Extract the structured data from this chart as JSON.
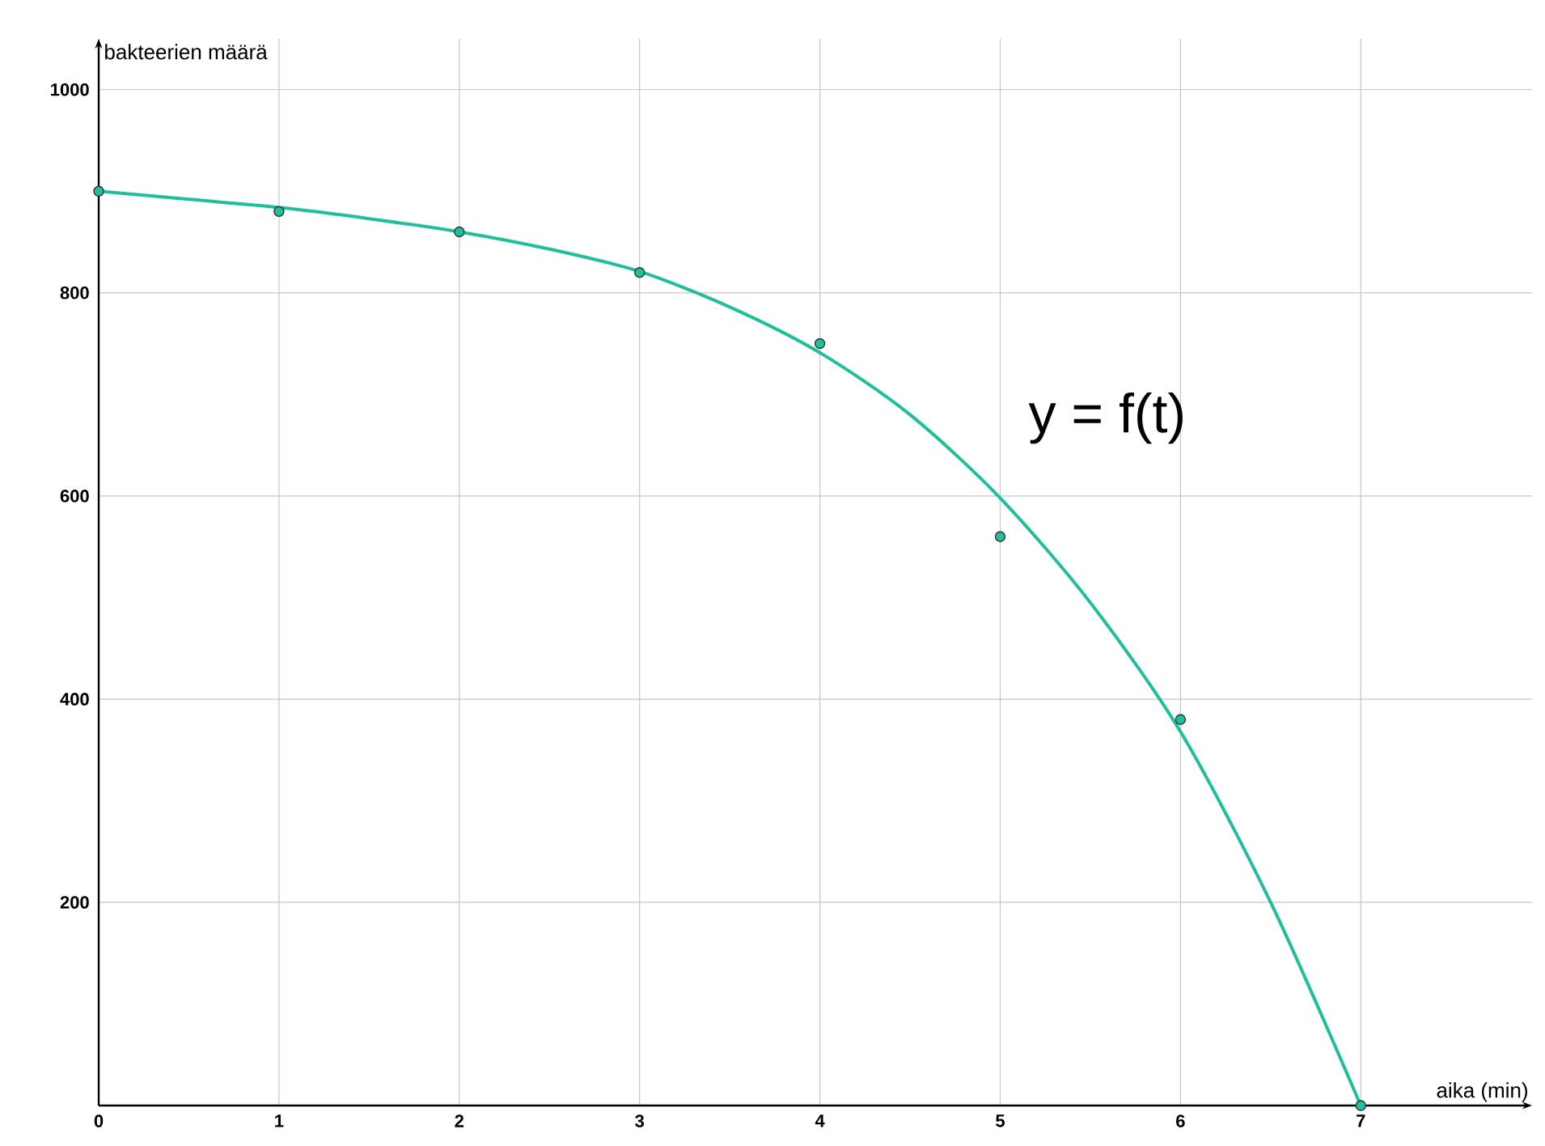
{
  "chart_data": {
    "type": "line",
    "xlabel": "aika (min)",
    "ylabel": "bakteerien määrä",
    "xlim": [
      0,
      7.95
    ],
    "ylim": [
      0,
      1050
    ],
    "xticks": [
      0,
      1,
      2,
      3,
      4,
      5,
      6,
      7
    ],
    "yticks": [
      200,
      400,
      600,
      800,
      1000
    ],
    "grid": true,
    "legend": false,
    "series": [
      {
        "type": "scatter",
        "color": "#1fbf9b",
        "marker": "circle",
        "x": [
          0,
          1,
          2,
          3,
          4,
          5,
          6,
          7
        ],
        "values": [
          900,
          880,
          860,
          820,
          750,
          560,
          380,
          0
        ]
      },
      {
        "name": "y = f(t)",
        "color": "#1fbf9b",
        "marker": "none",
        "line_style": "solid",
        "x": [
          0,
          0.5,
          1,
          1.5,
          2,
          2.5,
          3,
          3.5,
          4,
          4.5,
          5,
          5.5,
          6,
          6.5,
          7
        ],
        "values": [
          900,
          892,
          884,
          873,
          860,
          843,
          821,
          786,
          741,
          680,
          598,
          495,
          368,
          200,
          0
        ]
      }
    ]
  }
}
